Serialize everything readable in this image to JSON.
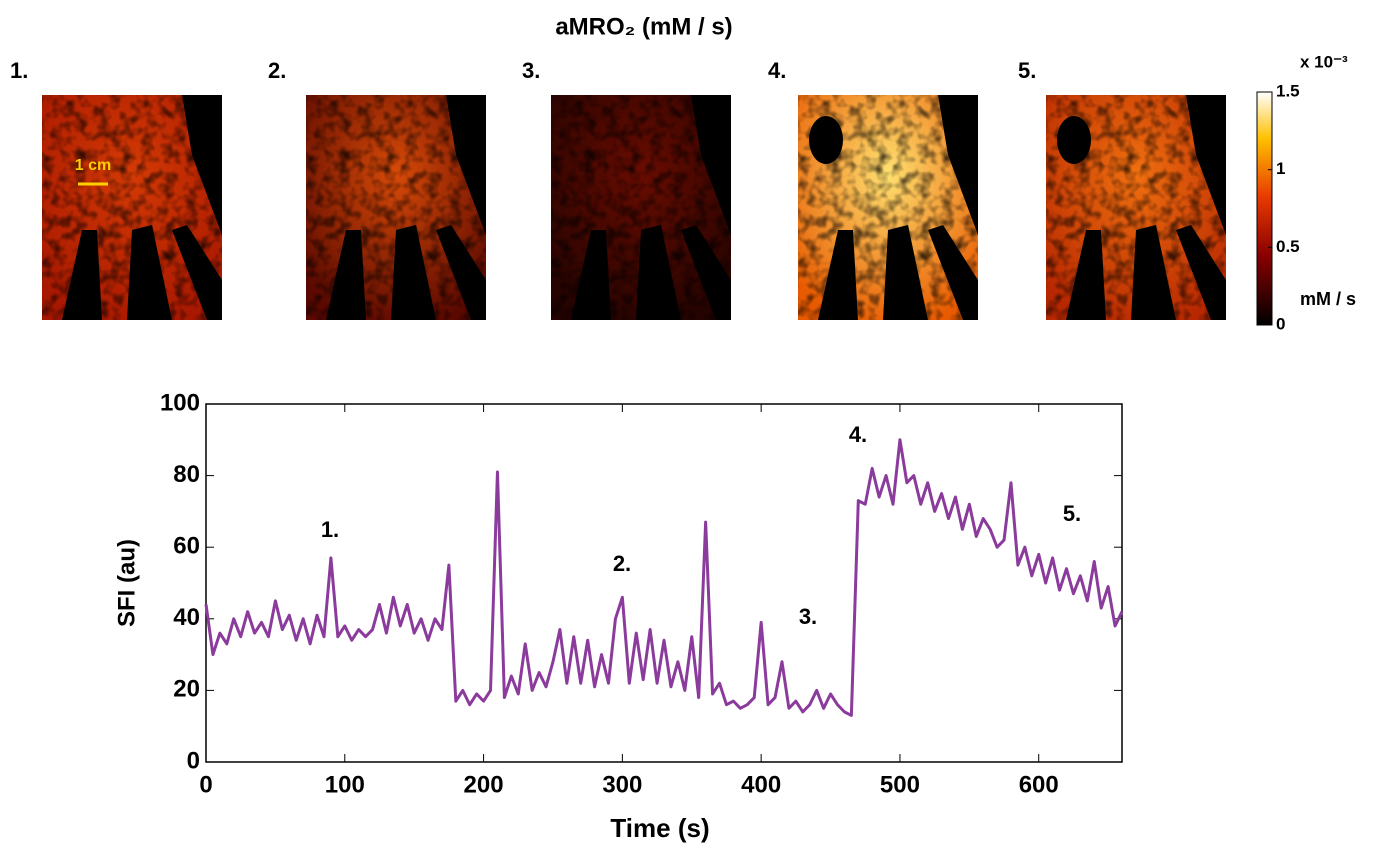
{
  "images": {
    "title": "aMRO₂ (mM / s)",
    "panels": [
      "1.",
      "2.",
      "3.",
      "4.",
      "5."
    ],
    "scale_bar": "1 cm"
  },
  "colorbar": {
    "lim": [
      0,
      1.5
    ],
    "ticks": [
      0,
      0.5,
      1,
      1.5
    ],
    "multiplier": "x 10⁻³",
    "unit": "mM / s"
  },
  "chart_data": {
    "type": "line",
    "xlabel": "Time (s)",
    "ylabel": "SFI (au)",
    "xlim": [
      0,
      660
    ],
    "ylim": [
      0,
      100
    ],
    "xticks": [
      0,
      100,
      200,
      300,
      400,
      500,
      600
    ],
    "yticks": [
      0,
      20,
      40,
      60,
      80,
      100
    ],
    "annotations": [
      "1.",
      "2.",
      "3.",
      "4.",
      "5."
    ],
    "x": [
      0,
      5,
      10,
      15,
      20,
      25,
      30,
      35,
      40,
      45,
      50,
      55,
      60,
      65,
      70,
      75,
      80,
      85,
      90,
      95,
      100,
      105,
      110,
      115,
      120,
      125,
      130,
      135,
      140,
      145,
      150,
      155,
      160,
      165,
      170,
      175,
      180,
      185,
      190,
      195,
      200,
      205,
      210,
      215,
      220,
      225,
      230,
      235,
      240,
      245,
      250,
      255,
      260,
      265,
      270,
      275,
      280,
      285,
      290,
      295,
      300,
      305,
      310,
      315,
      320,
      325,
      330,
      335,
      340,
      345,
      350,
      355,
      360,
      365,
      370,
      375,
      380,
      385,
      390,
      395,
      400,
      405,
      410,
      415,
      420,
      425,
      430,
      435,
      440,
      445,
      450,
      455,
      460,
      465,
      470,
      475,
      480,
      485,
      490,
      495,
      500,
      505,
      510,
      515,
      520,
      525,
      530,
      535,
      540,
      545,
      550,
      555,
      560,
      565,
      570,
      575,
      580,
      585,
      590,
      595,
      600,
      605,
      610,
      615,
      620,
      625,
      630,
      635,
      640,
      645,
      650,
      655,
      660
    ],
    "series": [
      {
        "name": "SFI",
        "color": "#8b3b9c",
        "values": [
          44,
          30,
          36,
          33,
          40,
          35,
          42,
          36,
          39,
          35,
          45,
          37,
          41,
          34,
          40,
          33,
          41,
          35,
          57,
          35,
          38,
          34,
          37,
          35,
          37,
          44,
          36,
          46,
          38,
          44,
          36,
          40,
          34,
          40,
          37,
          55,
          17,
          20,
          16,
          19,
          17,
          20,
          81,
          18,
          24,
          19,
          33,
          20,
          25,
          21,
          28,
          37,
          22,
          35,
          22,
          34,
          21,
          30,
          22,
          40,
          46,
          22,
          36,
          23,
          37,
          22,
          34,
          21,
          28,
          20,
          35,
          18,
          67,
          19,
          22,
          16,
          17,
          15,
          16,
          18,
          39,
          16,
          18,
          28,
          15,
          17,
          14,
          16,
          20,
          15,
          19,
          16,
          14,
          13,
          73,
          72,
          82,
          74,
          80,
          72,
          90,
          78,
          80,
          72,
          78,
          70,
          75,
          68,
          74,
          65,
          72,
          63,
          68,
          65,
          60,
          62,
          78,
          55,
          60,
          52,
          58,
          50,
          57,
          48,
          54,
          47,
          52,
          45,
          56,
          43,
          49,
          38,
          42
        ]
      }
    ]
  }
}
